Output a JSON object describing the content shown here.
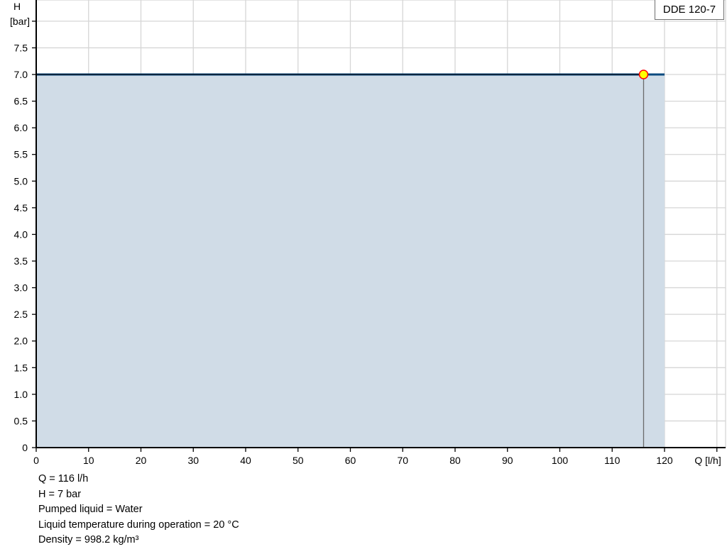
{
  "chart_data": {
    "type": "area",
    "title": "",
    "xlabel": "Q [l/h]",
    "ylabel_top": "H",
    "ylabel": "[bar]",
    "xlim": [
      0,
      130
    ],
    "ylim": [
      0,
      8
    ],
    "x_ticks": [
      0,
      10,
      20,
      30,
      40,
      50,
      60,
      70,
      80,
      90,
      100,
      110,
      120
    ],
    "x_tick_labels": [
      "0",
      "10",
      "20",
      "30",
      "40",
      "50",
      "60",
      "70",
      "80",
      "90",
      "100",
      "110",
      "120"
    ],
    "y_ticks": [
      0,
      0.5,
      1,
      1.5,
      2,
      2.5,
      3,
      3.5,
      4,
      4.5,
      5,
      5.5,
      6,
      6.5,
      7,
      7.5
    ],
    "y_tick_labels": [
      "0",
      "0.5",
      "1.0",
      "1.5",
      "2.0",
      "2.5",
      "3.0",
      "3.5",
      "4.0",
      "4.5",
      "5.0",
      "5.5",
      "6.0",
      "6.5",
      "7.0",
      "7.5"
    ],
    "grid": true,
    "legend": {
      "position": "top-right",
      "entries": [
        "DDE 120-7"
      ]
    },
    "series": [
      {
        "name": "DDE 120-7",
        "x": [
          0,
          120
        ],
        "y": [
          7,
          7
        ],
        "color": "#0a4a7f",
        "fill": "#d0dce7"
      }
    ],
    "operating_point": {
      "x": 116,
      "y": 7,
      "color": "#ffff00",
      "edge": "#ff0000"
    }
  },
  "info": [
    "Q = 116 l/h",
    "H = 7 bar",
    "Pumped liquid = Water",
    "Liquid temperature during operation = 20 °C",
    "Density = 998.2 kg/m³"
  ]
}
